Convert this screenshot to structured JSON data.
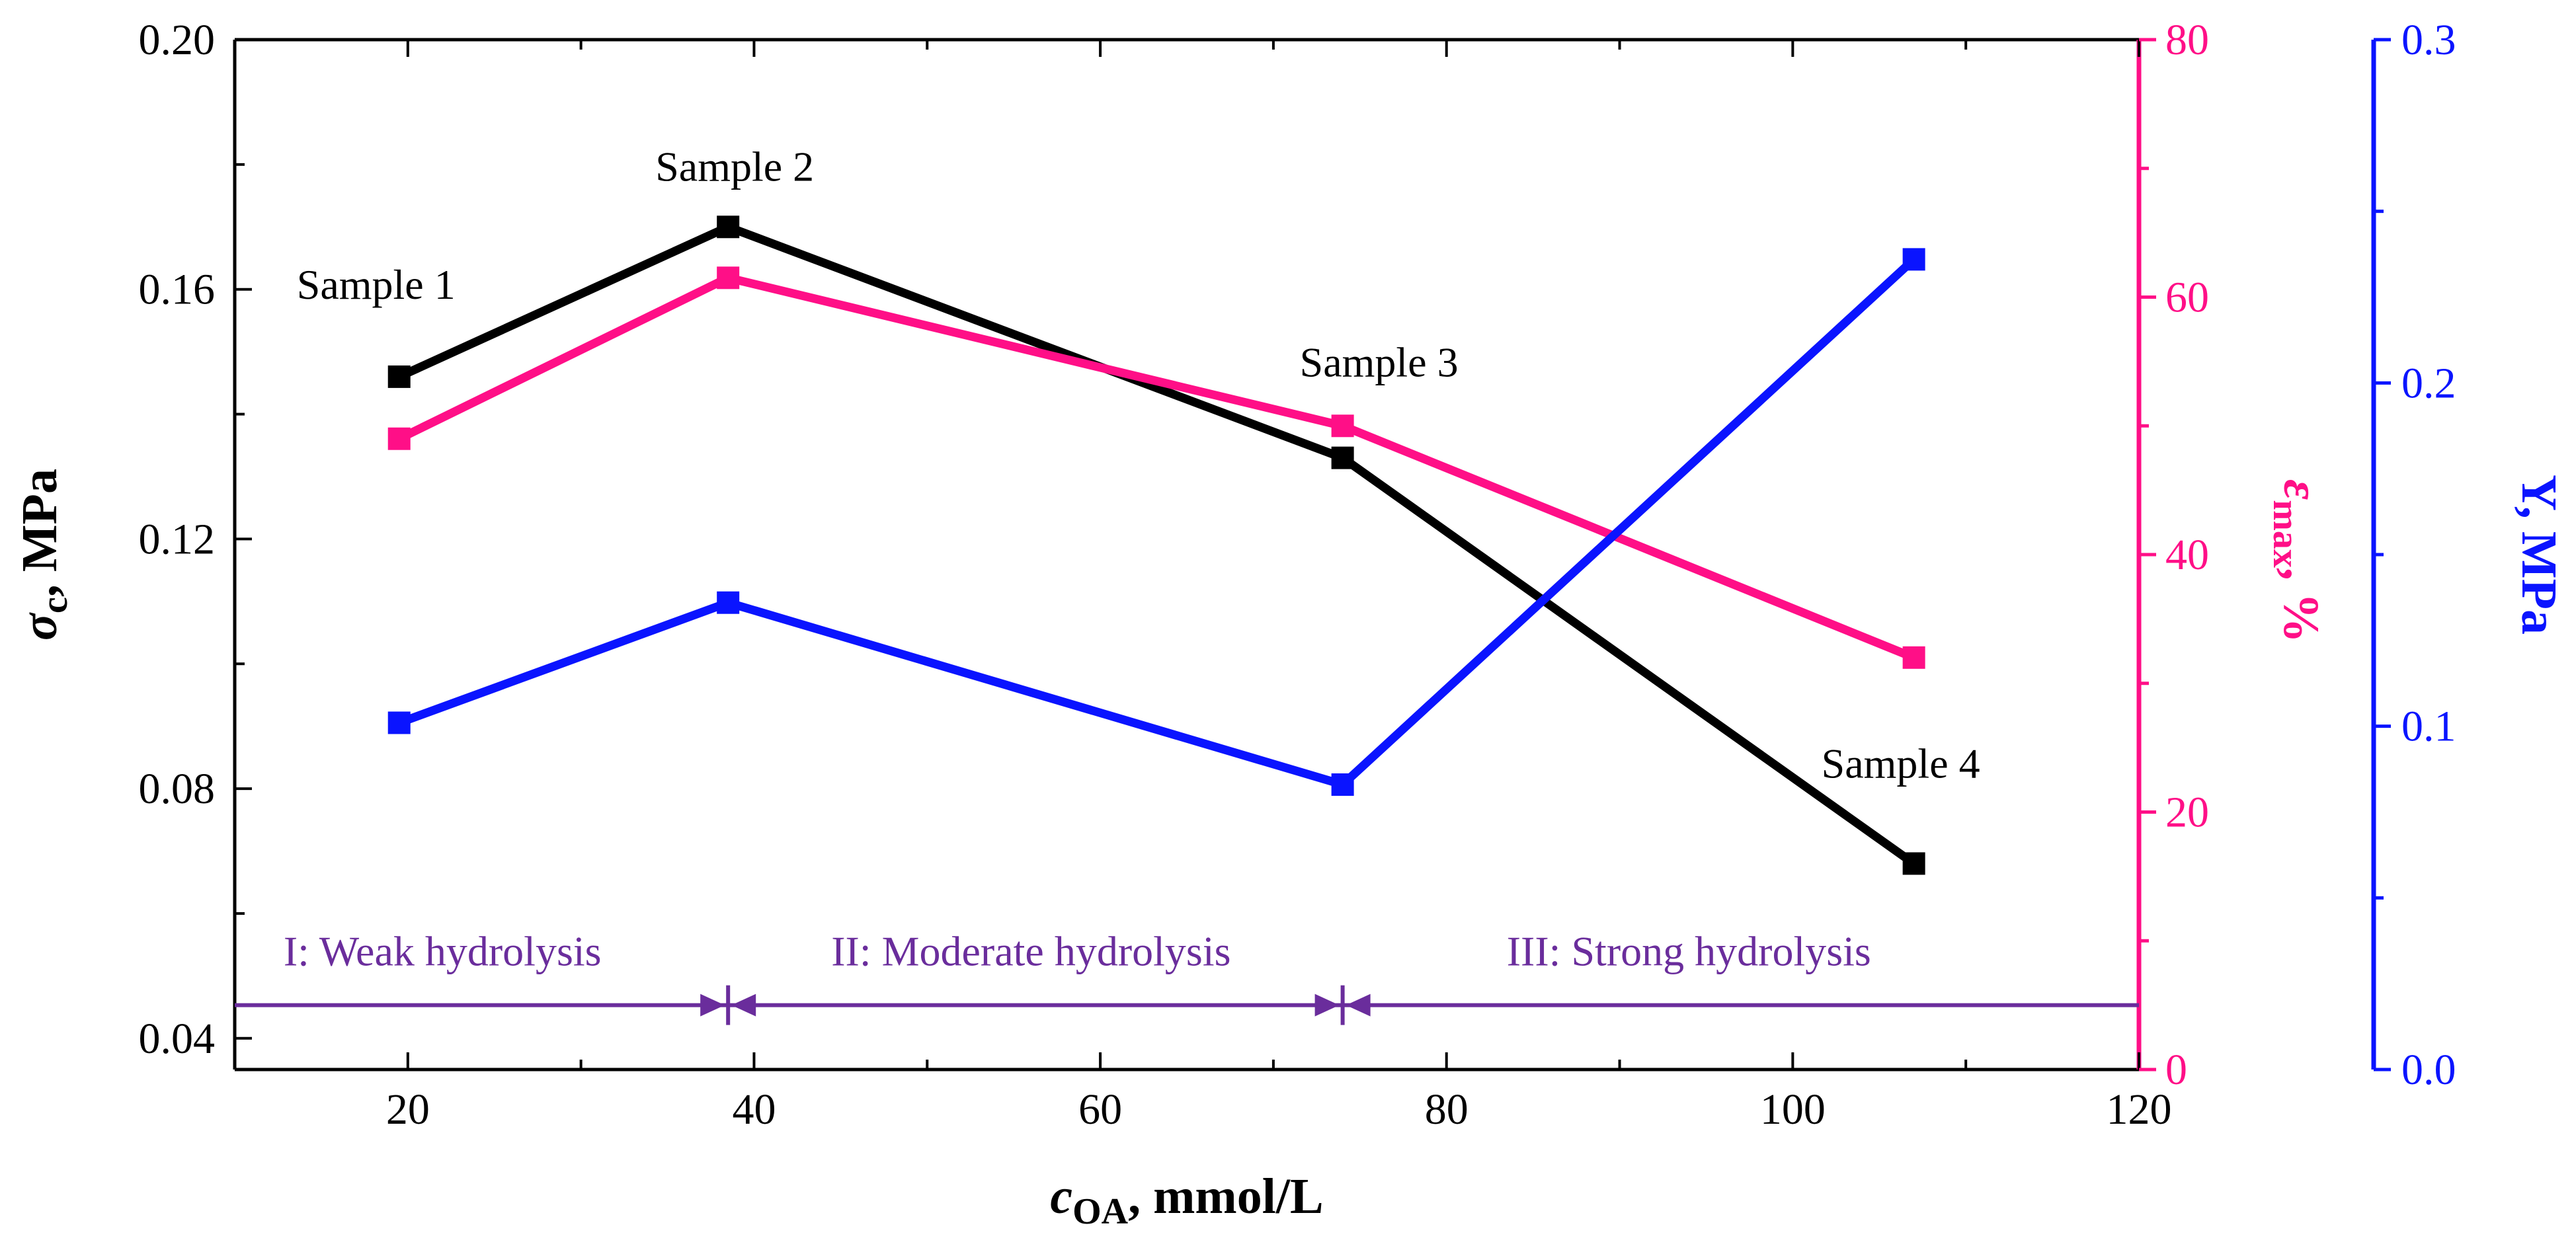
{
  "chart_data": {
    "type": "line",
    "x": [
      19.5,
      38.5,
      74,
      107
    ],
    "xlim": [
      10,
      120
    ],
    "x_ticks": [
      "20",
      "40",
      "60",
      "80",
      "100",
      "120"
    ],
    "xlabel": {
      "main": "c",
      "sub": "OA",
      "rest": ", mmol/L"
    },
    "axes": {
      "left": {
        "ylim": [
          0.035,
          0.2
        ],
        "ticks": [
          {
            "value": 0.04,
            "label": "0.04"
          },
          {
            "value": 0.08,
            "label": "0.08"
          },
          {
            "value": 0.12,
            "label": "0.12"
          },
          {
            "value": 0.16,
            "label": "0.16"
          },
          {
            "value": 0.2,
            "label": "0.20"
          }
        ],
        "title": {
          "main": "σ",
          "sub": "c",
          "rest": ", MPa"
        },
        "color": "#000000"
      },
      "right1": {
        "ylim": [
          0,
          80
        ],
        "ticks": [
          {
            "value": 0,
            "label": "0"
          },
          {
            "value": 20,
            "label": "20"
          },
          {
            "value": 40,
            "label": "40"
          },
          {
            "value": 60,
            "label": "60"
          },
          {
            "value": 80,
            "label": "80"
          }
        ],
        "title": {
          "main": "ε",
          "sub": "max",
          "rest": ", %"
        },
        "color": "#ff0f87"
      },
      "right2": {
        "ylim": [
          0,
          0.3
        ],
        "ticks": [
          {
            "value": 0.0,
            "label": "0.0"
          },
          {
            "value": 0.1,
            "label": "0.1"
          },
          {
            "value": 0.2,
            "label": "0.2"
          },
          {
            "value": 0.3,
            "label": "0.3"
          }
        ],
        "title": {
          "main": "Y, MPa"
        },
        "color": "#0a14ff"
      }
    },
    "series": [
      {
        "name": "σc",
        "axis": "left",
        "color": "#000000",
        "values": [
          0.146,
          0.17,
          0.133,
          0.068
        ]
      },
      {
        "name": "εmax",
        "axis": "right1",
        "color": "#ff0f87",
        "values": [
          49,
          61.5,
          50,
          32
        ]
      },
      {
        "name": "Y",
        "axis": "right2",
        "color": "#0a14ff",
        "values": [
          0.101,
          0.136,
          0.083,
          0.236
        ]
      }
    ],
    "annotations": [
      {
        "text": "Sample 1",
        "anchor_series": 0,
        "point": 0,
        "placement": "above-left"
      },
      {
        "text": "Sample 2",
        "anchor_series": 0,
        "point": 1,
        "placement": "above"
      },
      {
        "text": "Sample 3",
        "anchor_series": 1,
        "point": 2,
        "placement": "above"
      },
      {
        "text": "Sample 4",
        "anchor_series": 0,
        "point": 3,
        "placement": "above"
      }
    ],
    "regions": {
      "color": "#6a2d9c",
      "arrow_y_value": 5,
      "boundaries": [
        38.5,
        74
      ],
      "labels": [
        {
          "text": "I: Weak hydrolysis",
          "center_x": 22
        },
        {
          "text": "II: Moderate hydrolysis",
          "center_x": 56
        },
        {
          "text": "III: Strong hydrolysis",
          "center_x": 94
        }
      ]
    },
    "grid": false,
    "legend": "none"
  }
}
